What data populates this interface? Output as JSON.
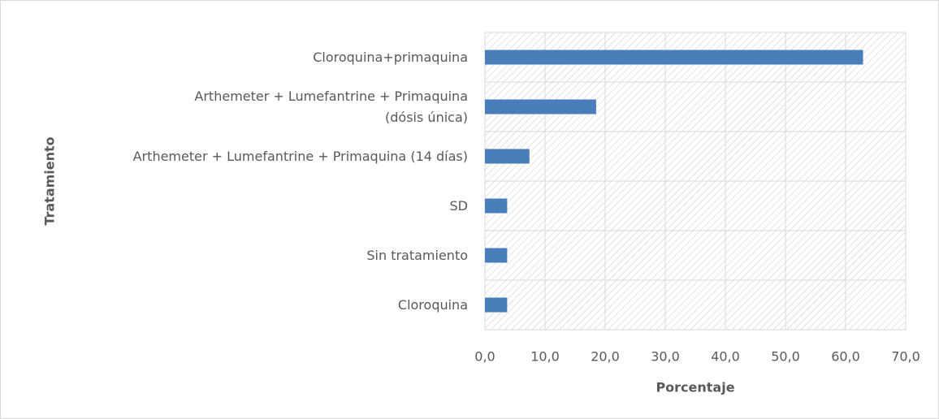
{
  "chart_data": {
    "type": "bar",
    "orientation": "horizontal",
    "x_label": "Porcentaje",
    "y_label": "Tratamiento",
    "categories": [
      "Cloroquina+primaquina",
      "Arthemeter + Lumefantrine + Primaquina\n(dósis única)",
      "Arthemeter + Lumefantrine + Primaquina (14 días)",
      "SD",
      "Sin tratamiento",
      "Cloroquina"
    ],
    "values": [
      62.9,
      18.5,
      7.4,
      3.7,
      3.7,
      3.7
    ],
    "color": "#4a7ebb",
    "xlim": [
      0,
      70
    ],
    "xticks": [
      {
        "value": 0,
        "label": "0,0"
      },
      {
        "value": 10,
        "label": "10,0"
      },
      {
        "value": 20,
        "label": "20,0"
      },
      {
        "value": 30,
        "label": "30,0"
      },
      {
        "value": 40,
        "label": "40,0"
      },
      {
        "value": 50,
        "label": "50,0"
      },
      {
        "value": 60,
        "label": "60,0"
      },
      {
        "value": 70,
        "label": "70,0"
      }
    ],
    "grid": true
  }
}
